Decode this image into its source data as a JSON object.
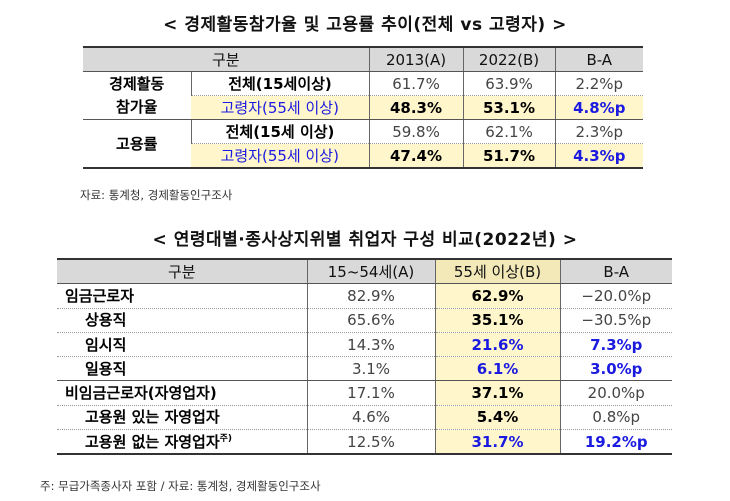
{
  "table1": {
    "title": "< 경제활동참가율 및 고용률 추이(전체 vs 고령자) >",
    "headers": [
      "구분",
      "2013(A)",
      "2022(B)",
      "B-A"
    ],
    "group1_label_line1": "경제활동",
    "group1_label_line2": "참가율",
    "group2_label": "고용률",
    "rows": [
      {
        "label": "전체(15세이상)",
        "a": "61.7%",
        "b": "63.9%",
        "diff": "2.2%p"
      },
      {
        "label": "고령자(55세 이상)",
        "a": "48.3%",
        "b": "53.1%",
        "diff": "4.8%p"
      },
      {
        "label": "전체(15세 이상)",
        "a": "59.8%",
        "b": "62.1%",
        "diff": "2.3%p"
      },
      {
        "label": "고령자(55세 이상)",
        "a": "47.4%",
        "b": "51.7%",
        "diff": "4.3%p"
      }
    ],
    "source": "자료: 통계청, 경제활동인구조사"
  },
  "table2": {
    "title": "< 연령대별·종사상지위별 취업자 구성 비교(2022년) >",
    "headers": [
      "구분",
      "15~54세(A)",
      "55세 이상(B)",
      "B-A"
    ],
    "rows": [
      {
        "label": "임금근로자",
        "a": "82.9%",
        "b": "62.9%",
        "diff": "−20.0%p"
      },
      {
        "label": "상용직",
        "a": "65.6%",
        "b": "35.1%",
        "diff": "−30.5%p"
      },
      {
        "label": "임시직",
        "a": "14.3%",
        "b": "21.6%",
        "diff": "7.3%p"
      },
      {
        "label": "일용직",
        "a": "3.1%",
        "b": "6.1%",
        "diff": "3.0%p"
      },
      {
        "label": "비임금근로자(자영업자)",
        "a": "17.1%",
        "b": "37.1%",
        "diff": "20.0%p"
      },
      {
        "label": "고용원 있는 자영업자",
        "a": "4.6%",
        "b": "5.4%",
        "diff": "0.8%p"
      },
      {
        "label": "고용원 없는 자영업자",
        "label_note": "주)",
        "a": "12.5%",
        "b": "31.7%",
        "diff": "19.2%p"
      }
    ],
    "source": "주: 무급가족종사자 포함 / 자료: 통계청, 경제활동인구조사"
  }
}
